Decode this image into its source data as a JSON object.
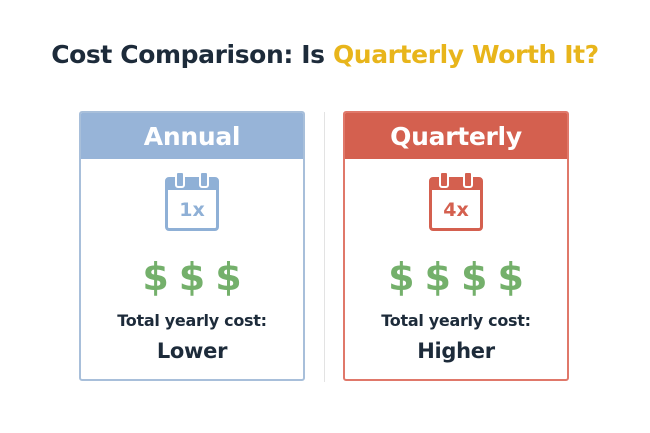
{
  "title": {
    "main": "Cost Comparison: Is ",
    "accent": "Quarterly Worth It?"
  },
  "colors": {
    "annual": "#97b4d8",
    "quarterly": "#d4604f",
    "dollar": "#74b06b",
    "accent": "#e8b51b",
    "text": "#1d2b3a"
  },
  "cards": {
    "annual": {
      "header": "Annual",
      "icon": "calendar-icon",
      "calendar_text": "1x",
      "dollar_symbol": "$",
      "dollar_count": 3,
      "cost_label": "Total yearly cost:",
      "cost_value": "Lower"
    },
    "quarterly": {
      "header": "Quarterly",
      "icon": "calendar-icon",
      "calendar_text": "4x",
      "dollar_symbol": "$",
      "dollar_count": 4,
      "cost_label": "Total yearly cost:",
      "cost_value": "Higher"
    }
  }
}
